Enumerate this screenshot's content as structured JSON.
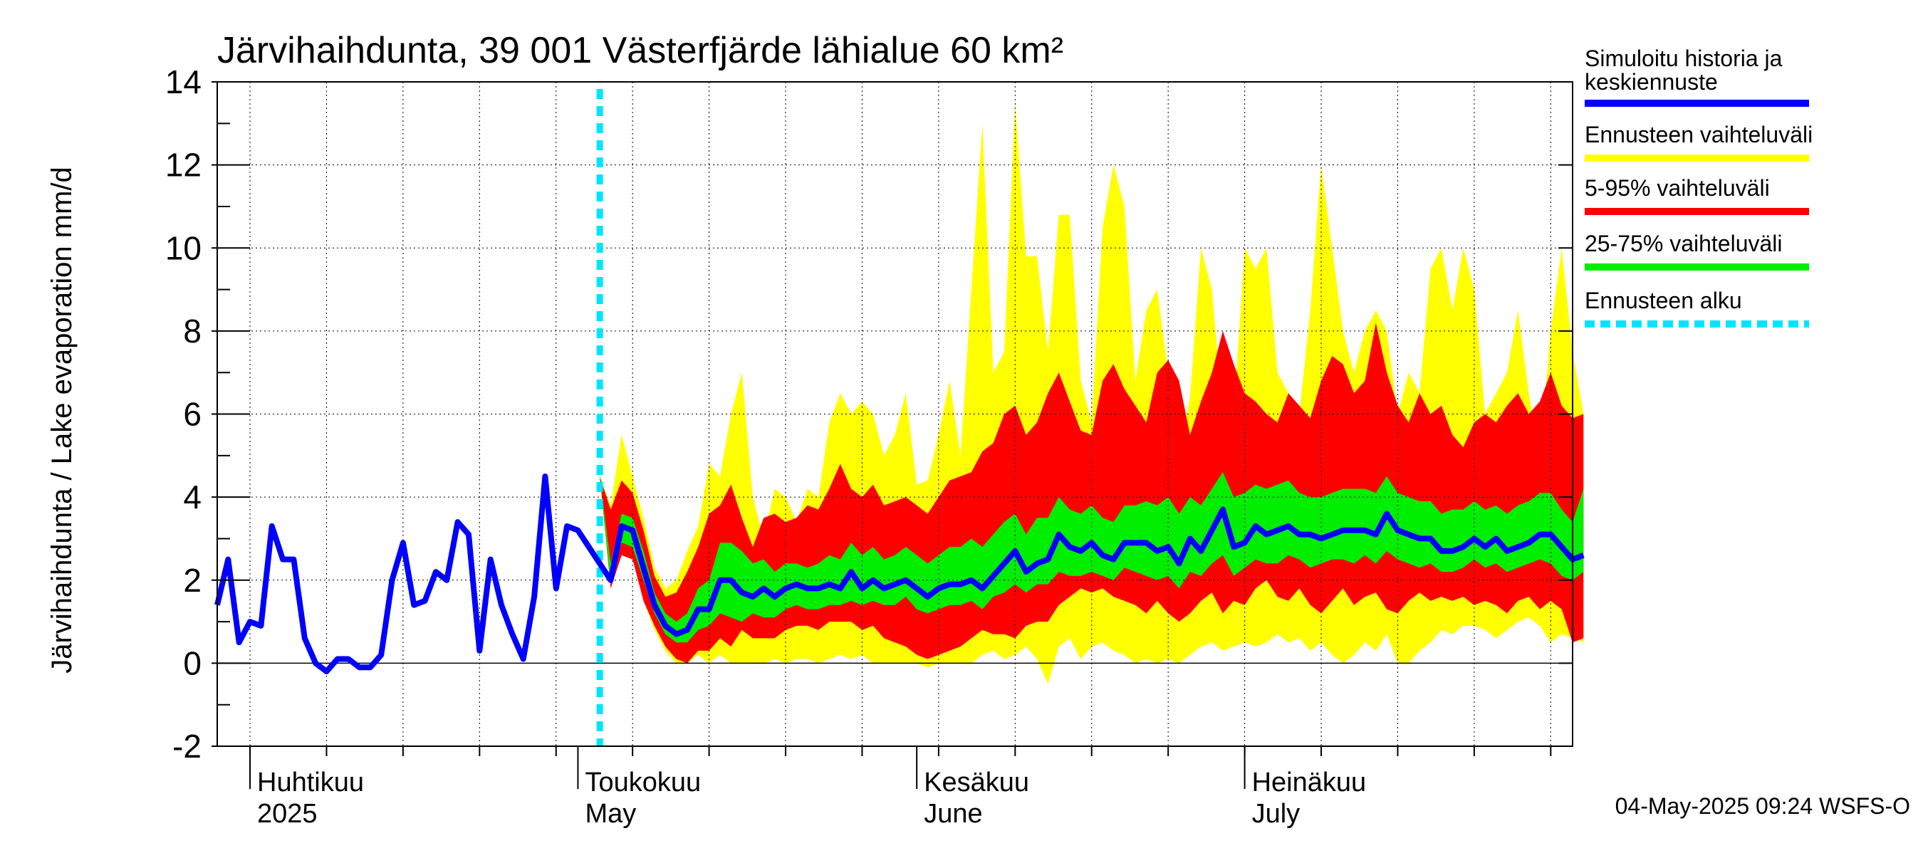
{
  "chart_data": {
    "type": "area",
    "title": "Järvihaihdunta, 39 001 Västerfjärde lähialue 60 km²",
    "ylabel": "Järvihaihdunta / Lake evaporation   mm/d",
    "ylim": [
      -2,
      14
    ],
    "yticks": [
      -2,
      0,
      2,
      4,
      6,
      8,
      10,
      12,
      14
    ],
    "xlim": [
      "2025-03-29",
      "2025-07-31"
    ],
    "forecast_start": "2025-05-03",
    "month_labels": [
      {
        "date": "2025-04-01",
        "fi": "Huhtikuu",
        "en": "2025"
      },
      {
        "date": "2025-05-01",
        "fi": "Toukokuu",
        "en": "May"
      },
      {
        "date": "2025-06-01",
        "fi": "Kesäkuu",
        "en": "June"
      },
      {
        "date": "2025-07-01",
        "fi": "Heinäkuu",
        "en": "July"
      }
    ],
    "legend": [
      {
        "label": "Simuloitu historia ja keskiennuste",
        "color": "#0000ff",
        "style": "solid"
      },
      {
        "label": "Ennusteen vaihteluväli",
        "color": "#ffff00",
        "style": "solid"
      },
      {
        "label": "5-95% vaihteluväli",
        "color": "#ff0000",
        "style": "solid"
      },
      {
        "label": "25-75% vaihteluväli",
        "color": "#00ee00",
        "style": "solid"
      },
      {
        "label": "Ennusteen alku",
        "color": "#00e5ff",
        "style": "dashed"
      }
    ],
    "footer": "04-May-2025 09:24 WSFS-O",
    "colors": {
      "history": "#0000ff",
      "range": "#ffff00",
      "p5_95": "#ff0000",
      "p25_75": "#00ee00",
      "forecast_start": "#00e5ff",
      "grid": "#000000"
    },
    "history": {
      "start": "2025-03-29",
      "values": [
        1.4,
        2.5,
        0.5,
        1.0,
        0.9,
        3.3,
        2.5,
        2.5,
        0.6,
        0.0,
        -0.2,
        0.1,
        0.1,
        -0.1,
        -0.1,
        0.2,
        2.0,
        2.9,
        1.4,
        1.5,
        2.2,
        2.0,
        3.4,
        3.1,
        0.3,
        2.5,
        1.4,
        0.7,
        0.1,
        1.6,
        4.5,
        1.8,
        3.3,
        3.2
      ]
    },
    "forecast": {
      "start": "2025-05-03",
      "mean": [
        4.5,
        2.0,
        3.3,
        3.2,
        2.3,
        1.4,
        0.9,
        0.7,
        0.8,
        1.3,
        1.3,
        2.0,
        2.0,
        1.7,
        1.6,
        1.8,
        1.6,
        1.8,
        1.9,
        1.8,
        1.8,
        1.9,
        1.8,
        2.2,
        1.8,
        2.0,
        1.8,
        1.9,
        2.0,
        1.8,
        1.6,
        1.8,
        1.9,
        1.9,
        2.0,
        1.8,
        2.1,
        2.4,
        2.7,
        2.2,
        2.4,
        2.5,
        3.1,
        2.8,
        2.7,
        2.9,
        2.6,
        2.5,
        2.9,
        2.9,
        2.9,
        2.7,
        2.8,
        2.4,
        3.0,
        2.7,
        3.2,
        3.7,
        2.8,
        2.9,
        3.3,
        3.1,
        3.2,
        3.3,
        3.1,
        3.1,
        3.0,
        3.1,
        3.2,
        3.2,
        3.2,
        3.1,
        3.6,
        3.2,
        3.1,
        3.0,
        3.0,
        2.7,
        2.7,
        2.8,
        3.0,
        2.8,
        3.0,
        2.7,
        2.8,
        2.9,
        3.1,
        3.1,
        2.8,
        2.5,
        2.6
      ],
      "min": [
        4.5,
        1.8,
        2.6,
        2.5,
        1.5,
        0.8,
        0.3,
        0.0,
        0.0,
        0.2,
        0.0,
        0.2,
        0.0,
        0.0,
        0.0,
        0.0,
        0.1,
        0.0,
        0.1,
        0.1,
        0.0,
        0.1,
        0.2,
        0.1,
        0.2,
        0.0,
        0.0,
        0.0,
        0.0,
        0.0,
        -0.1,
        0.0,
        0.0,
        0.0,
        0.0,
        0.2,
        0.3,
        0.1,
        0.2,
        0.4,
        0.1,
        -0.5,
        0.4,
        0.6,
        0.1,
        0.4,
        0.5,
        0.3,
        0.2,
        0.0,
        0.1,
        0.0,
        0.1,
        0.0,
        0.2,
        0.4,
        0.5,
        0.3,
        0.4,
        0.5,
        0.4,
        0.5,
        0.7,
        0.5,
        0.6,
        0.3,
        0.5,
        0.2,
        0.0,
        0.2,
        0.5,
        0.3,
        0.7,
        0.0,
        0.0,
        0.3,
        0.5,
        0.8,
        0.7,
        0.9,
        0.9,
        0.8,
        0.6,
        0.8,
        1.0,
        1.1,
        0.9,
        0.5,
        0.7,
        0.6,
        0.5
      ],
      "max": [
        4.5,
        3.8,
        5.5,
        4.5,
        3.5,
        2.3,
        1.8,
        2.0,
        2.7,
        3.3,
        4.8,
        4.5,
        6.0,
        7.0,
        4.0,
        3.0,
        4.2,
        4.0,
        3.4,
        4.2,
        4.0,
        5.8,
        6.5,
        6.0,
        6.3,
        6.0,
        5.0,
        5.5,
        6.5,
        4.3,
        4.4,
        5.5,
        6.8,
        5.0,
        9.0,
        13.0,
        7.0,
        7.5,
        13.5,
        9.8,
        9.8,
        7.5,
        10.8,
        10.8,
        6.8,
        5.8,
        10.5,
        12.0,
        11.0,
        6.8,
        8.5,
        9.0,
        7.0,
        5.0,
        6.4,
        10.0,
        9.0,
        6.0,
        6.0,
        10.0,
        9.5,
        10.0,
        7.0,
        6.5,
        6.0,
        8.5,
        12.0,
        10.0,
        8.0,
        7.0,
        8.0,
        8.5,
        8.0,
        6.0,
        7.0,
        6.5,
        9.5,
        10.0,
        8.5,
        10.0,
        9.0,
        6.0,
        6.5,
        7.0,
        8.5,
        6.5,
        5.0,
        8.0,
        10.0,
        7.5,
        6.0
      ],
      "p5": [
        4.5,
        1.8,
        2.6,
        2.5,
        1.5,
        0.9,
        0.4,
        0.1,
        0.0,
        0.3,
        0.3,
        0.6,
        0.4,
        0.8,
        0.6,
        0.6,
        0.6,
        0.8,
        0.9,
        0.9,
        0.8,
        1.0,
        1.0,
        1.0,
        0.8,
        0.9,
        0.6,
        0.5,
        0.4,
        0.2,
        0.1,
        0.2,
        0.3,
        0.4,
        0.6,
        0.8,
        0.7,
        0.7,
        0.6,
        0.9,
        1.0,
        1.0,
        1.4,
        1.6,
        1.8,
        1.7,
        1.8,
        1.6,
        1.5,
        1.4,
        1.2,
        1.5,
        1.2,
        1.0,
        1.2,
        1.5,
        1.7,
        1.2,
        1.5,
        1.4,
        1.8,
        2.0,
        1.6,
        1.5,
        1.8,
        1.4,
        1.2,
        1.5,
        1.8,
        1.4,
        1.6,
        1.7,
        1.3,
        1.2,
        1.5,
        1.7,
        1.5,
        1.6,
        1.5,
        1.6,
        1.4,
        1.5,
        1.4,
        1.2,
        1.5,
        1.6,
        1.3,
        1.5,
        1.3,
        0.5,
        0.6
      ],
      "p95": [
        4.5,
        3.7,
        4.4,
        4.1,
        3.2,
        2.1,
        1.6,
        1.7,
        2.2,
        2.8,
        3.6,
        3.8,
        4.3,
        3.5,
        2.8,
        3.5,
        3.6,
        3.4,
        3.5,
        3.8,
        3.7,
        4.2,
        4.8,
        4.2,
        4.0,
        4.3,
        3.8,
        3.9,
        4.0,
        3.8,
        3.6,
        4.0,
        4.4,
        4.5,
        4.6,
        5.1,
        5.3,
        6.0,
        6.2,
        5.5,
        5.8,
        6.5,
        7.0,
        6.3,
        5.6,
        5.5,
        6.8,
        7.2,
        6.6,
        6.2,
        5.8,
        7.0,
        7.3,
        6.8,
        5.5,
        6.3,
        7.0,
        8.0,
        7.2,
        6.5,
        6.3,
        6.0,
        5.8,
        6.5,
        6.2,
        5.9,
        6.8,
        7.4,
        7.2,
        6.5,
        6.8,
        8.2,
        7.0,
        6.2,
        5.8,
        6.5,
        6.0,
        6.2,
        5.5,
        5.2,
        5.8,
        6.0,
        5.8,
        6.2,
        6.5,
        6.0,
        6.3,
        7.0,
        6.2,
        5.9,
        6.0
      ],
      "p25": [
        4.5,
        1.9,
        2.9,
        2.8,
        2.0,
        1.2,
        0.7,
        0.5,
        0.5,
        0.8,
        0.9,
        1.2,
        1.1,
        1.0,
        1.2,
        1.1,
        1.1,
        1.3,
        1.4,
        1.3,
        1.3,
        1.4,
        1.4,
        1.5,
        1.4,
        1.5,
        1.4,
        1.4,
        1.6,
        1.3,
        1.2,
        1.3,
        1.4,
        1.4,
        1.5,
        1.3,
        1.6,
        1.7,
        1.9,
        1.7,
        1.9,
        1.9,
        2.2,
        2.1,
        2.1,
        2.2,
        2.1,
        2.0,
        2.3,
        2.2,
        2.1,
        2.0,
        2.1,
        1.8,
        2.2,
        2.1,
        2.4,
        2.6,
        2.1,
        2.3,
        2.5,
        2.4,
        2.4,
        2.6,
        2.5,
        2.3,
        2.4,
        2.5,
        2.5,
        2.4,
        2.6,
        2.4,
        2.7,
        2.5,
        2.4,
        2.3,
        2.4,
        2.2,
        2.2,
        2.3,
        2.5,
        2.3,
        2.4,
        2.2,
        2.3,
        2.4,
        2.5,
        2.4,
        2.1,
        2.0,
        2.2
      ],
      "p75": [
        4.5,
        2.4,
        3.6,
        3.5,
        2.7,
        1.7,
        1.2,
        1.0,
        1.2,
        1.8,
        2.0,
        2.9,
        2.9,
        2.7,
        2.4,
        2.5,
        2.2,
        2.4,
        2.4,
        2.3,
        2.4,
        2.6,
        2.5,
        2.9,
        2.6,
        2.8,
        2.5,
        2.6,
        2.8,
        2.6,
        2.4,
        2.6,
        2.8,
        2.8,
        3.0,
        2.8,
        3.1,
        3.4,
        3.6,
        3.1,
        3.5,
        3.5,
        4.0,
        3.7,
        3.6,
        3.8,
        3.5,
        3.4,
        3.8,
        3.8,
        3.9,
        3.8,
        4.0,
        3.6,
        4.0,
        3.8,
        4.2,
        4.6,
        4.0,
        4.1,
        4.3,
        4.2,
        4.3,
        4.4,
        4.1,
        4.0,
        4.0,
        4.1,
        4.2,
        4.2,
        4.2,
        4.1,
        4.5,
        4.1,
        4.0,
        3.9,
        3.9,
        3.6,
        3.7,
        3.7,
        3.9,
        3.7,
        3.8,
        3.6,
        3.8,
        3.9,
        4.1,
        4.1,
        3.7,
        3.4,
        4.2
      ]
    }
  }
}
